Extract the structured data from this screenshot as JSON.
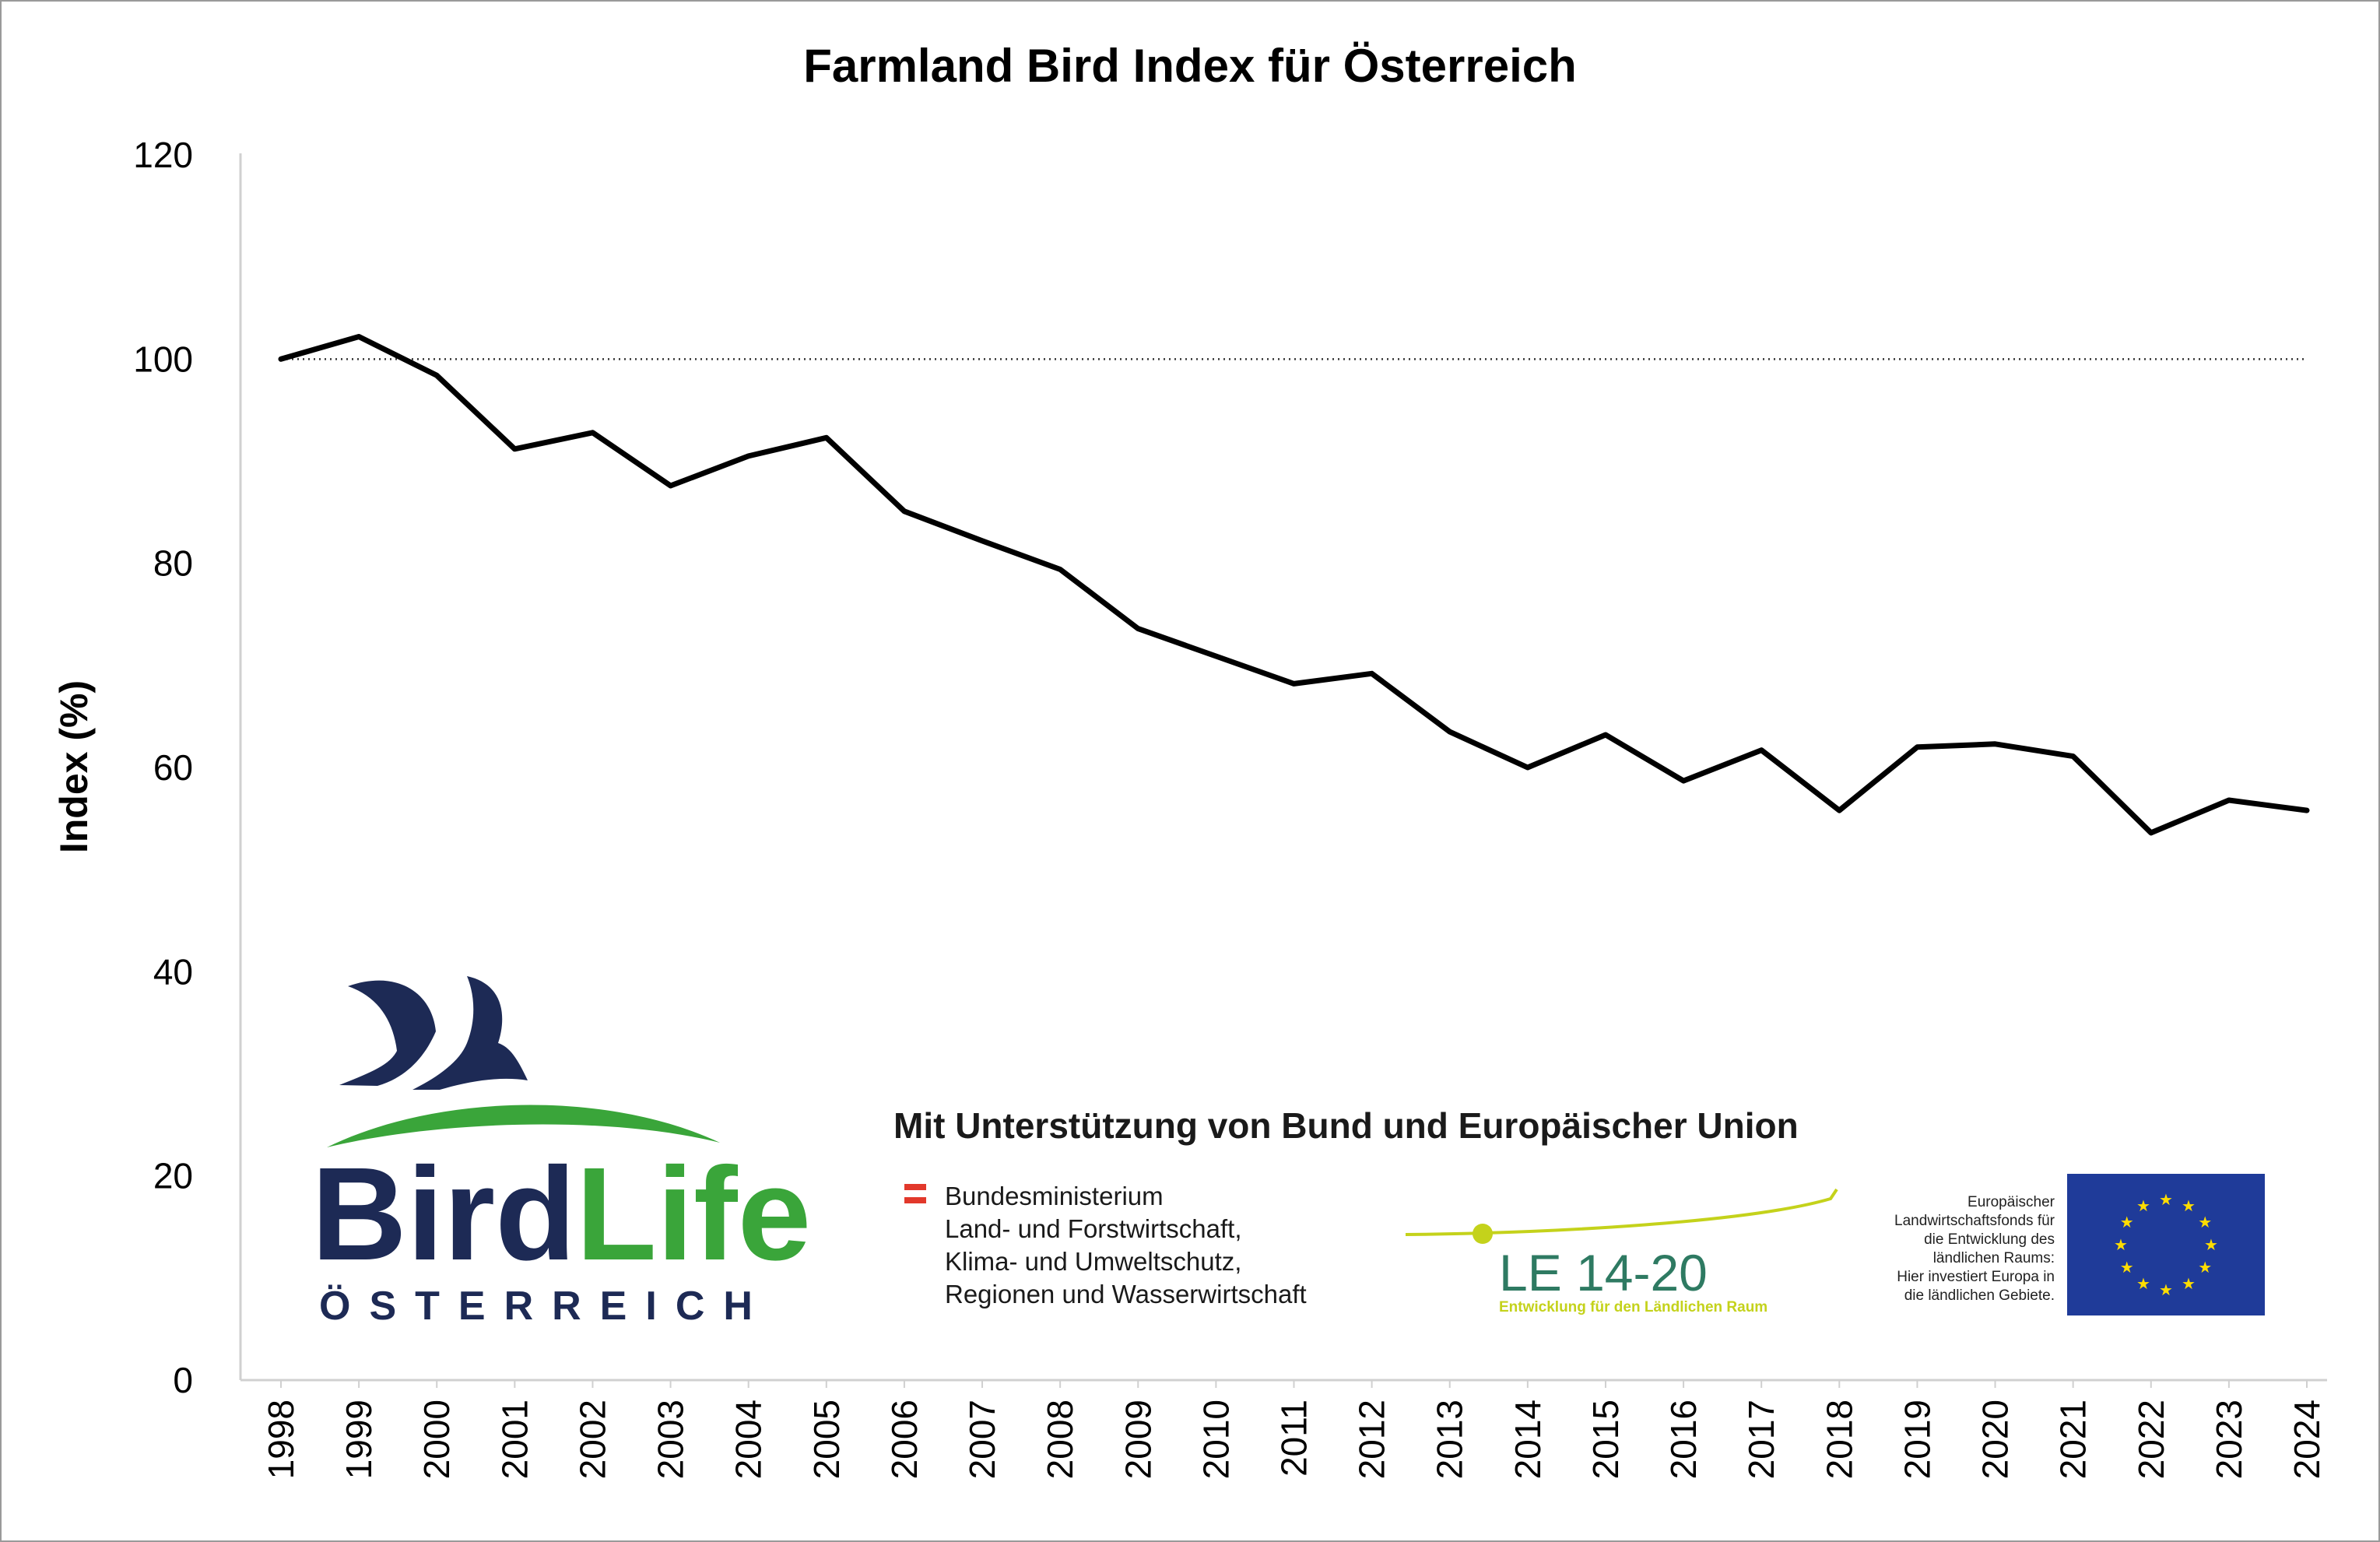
{
  "chart_data": {
    "type": "line",
    "title": "Farmland Bird Index für Österreich",
    "xlabel": "",
    "ylabel": "Index (%)",
    "ylim": [
      0,
      120
    ],
    "yticks": [
      0,
      20,
      40,
      60,
      80,
      100,
      120
    ],
    "reference_line": 100,
    "grid": false,
    "x": [
      "1998",
      "1999",
      "2000",
      "2001",
      "2002",
      "2003",
      "2004",
      "2005",
      "2006",
      "2007",
      "2008",
      "2009",
      "2010",
      "2011",
      "2012",
      "2013",
      "2014",
      "2015",
      "2016",
      "2017",
      "2018",
      "2019",
      "2020",
      "2021",
      "2022",
      "2023",
      "2024"
    ],
    "series": [
      {
        "values": [
          100,
          102.2,
          98.4,
          91.2,
          92.8,
          87.6,
          90.5,
          92.3,
          85.1,
          82.2,
          79.4,
          73.6,
          70.9,
          68.2,
          69.2,
          63.5,
          60.0,
          63.2,
          58.7,
          61.7,
          55.8,
          62.0,
          62.3,
          61.1,
          53.6,
          56.8,
          55.8
        ]
      }
    ]
  },
  "colors": {
    "line": "#000000",
    "birdlife_blue": "#1d2a55",
    "birdlife_green": "#3aa53a",
    "le_green": "#2e7a62",
    "le_lime": "#c4d21b",
    "eu_blue": "#1f3b99",
    "eu_star": "#ffdd00",
    "austria_red": "#e2382b"
  },
  "logos": {
    "birdlife_bird": "Bird",
    "birdlife_life": "Life",
    "birdlife_country": "ÖSTERREICH",
    "support_heading": "Mit Unterstützung von Bund und Europäischer Union",
    "ministry_lines": [
      "Bundesministerium",
      "Land- und Forstwirtschaft,",
      "Klima- und Umweltschutz,",
      "Regionen und Wasserwirtschaft"
    ],
    "le_title": "LE 14-20",
    "le_subtitle": "Entwicklung für den Ländlichen Raum",
    "eu_fund_lines": [
      "Europäischer",
      "Landwirtschaftsfonds für",
      "die Entwicklung des",
      "ländlichen Raums:",
      "Hier investiert Europa in",
      "die ländlichen Gebiete."
    ]
  }
}
